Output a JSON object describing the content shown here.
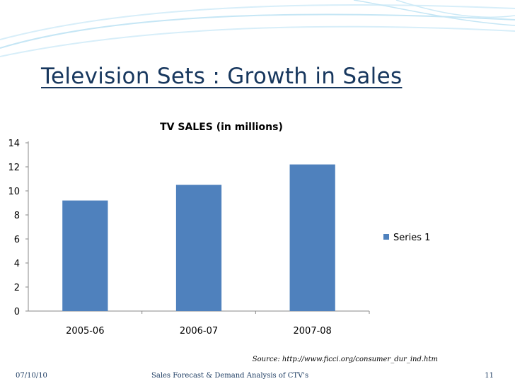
{
  "slide": {
    "title": "Television Sets : Growth in Sales",
    "source": "Source: http://www.ficci.org/consumer_dur_ind.htm",
    "footer_date": "07/10/10",
    "footer_center": "Sales Forecast & Demand Analysis of CTV's",
    "page_number": "11"
  },
  "colors": {
    "title": "#17375e",
    "bar": "#4f81bd",
    "axis": "#888888",
    "gridline": "#d9d9d9",
    "wave": "#c5e6f5"
  },
  "chart_data": {
    "type": "bar",
    "title": "TV SALES (in millions)",
    "categories": [
      "2005-06",
      "2006-07",
      "2007-08"
    ],
    "series": [
      {
        "name": "Series 1",
        "values": [
          9.2,
          10.5,
          12.2
        ]
      }
    ],
    "ylim": [
      0,
      14
    ],
    "yticks": [
      0,
      2,
      4,
      6,
      8,
      10,
      12,
      14
    ],
    "ytick_labels": [
      "0",
      "2",
      "4",
      "6",
      "8",
      "10",
      "12",
      "14"
    ],
    "xlabel": "",
    "ylabel": "",
    "legend": "right",
    "grid": false
  }
}
